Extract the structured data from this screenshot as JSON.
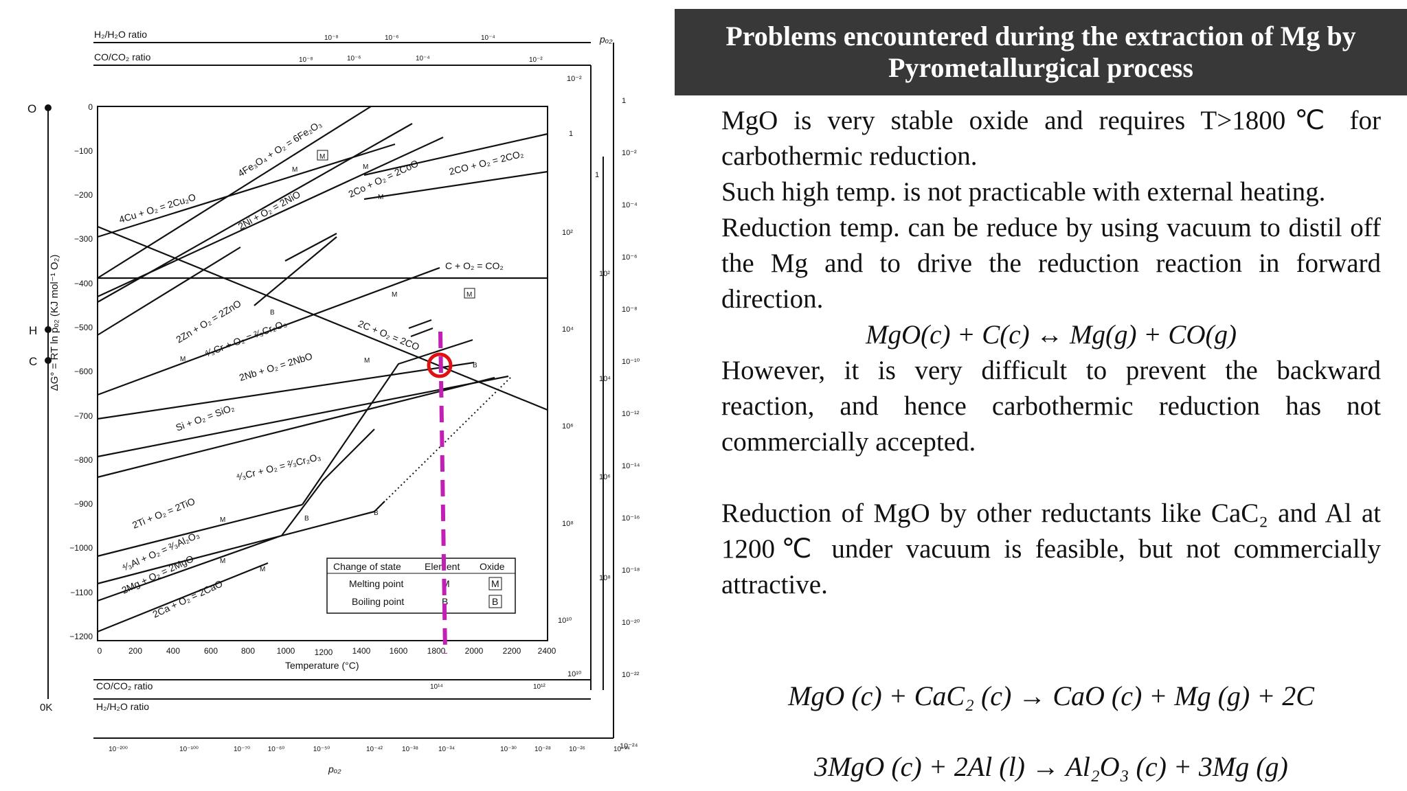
{
  "slide": {
    "title_line1": "Problems encountered during the extraction of Mg by",
    "title_line2": "Pyrometallurgical process",
    "paragraphs": [
      "MgO is very stable oxide and requires T>1800℃ for carbothermic reduction.",
      "Such high temp. is not practicable with external heating.",
      "Reduction temp. can be reduce by using vacuum to distil off the Mg and to drive the reduction reaction in forward direction."
    ],
    "equation1": "MgO(c) + C(c) ↔ Mg(g) + CO(g)",
    "paragraph4": "However, it is very difficult to prevent the backward reaction, and hence carbothermic reduction has not commercially accepted.",
    "paragraph5": "Reduction of MgO by other reductants like CaC₂ and Al at 1200℃ under vacuum is feasible, but not commercially attractive.",
    "equation2": "MgO (c) + CaC₂ (c) → CaO (c) + Mg (g) + 2C",
    "equation3": "3MgO (c) + 2Al (l) → Al₂O₃ (c) + 3Mg (g)"
  },
  "diagram": {
    "top_scale_h2": "H₂/H₂O ratio",
    "top_scale_co": "CO/CO₂ ratio",
    "bottom_scale_co": "CO/CO₂ ratio",
    "bottom_scale_h2": "H₂/H₂O ratio",
    "top_h2_ticks": [
      "10⁻⁸",
      "10⁻⁶",
      "10⁻⁴"
    ],
    "top_co_ticks": [
      "10⁻⁸",
      "10⁻⁶",
      "10⁻⁴",
      "10⁻²"
    ],
    "po2_label": "pₒ₂",
    "po2_bottom_label": "pₒ₂",
    "left_points": [
      "O",
      "H",
      "C",
      "0K"
    ],
    "ylabel": "ΔG° = RT ln pₒ₂ (KJ mol⁻¹ O₂)",
    "xlabel": "Temperature (°C)",
    "y_ticks": [
      "0",
      "−100",
      "−200",
      "−300",
      "−400",
      "−500",
      "−600",
      "−700",
      "−800",
      "−900",
      "−1000",
      "−1100",
      "−1200"
    ],
    "x_ticks": [
      "0",
      "200",
      "400",
      "600",
      "800",
      "1000",
      "1200",
      "1400",
      "1600",
      "1800",
      "2000",
      "2200",
      "2400"
    ],
    "co_ratio_right_ticks": [
      "10⁻²",
      "1",
      "10²",
      "10⁴",
      "10⁶",
      "10⁸",
      "10¹⁰"
    ],
    "h2_ratio_right_ticks": [
      "1",
      "10²",
      "10⁴",
      "10⁶",
      "10⁸",
      "10¹⁰"
    ],
    "po2_right_ticks": [
      "1",
      "10⁻²",
      "10⁻⁴",
      "10⁻⁶",
      "10⁻⁸",
      "10⁻¹⁰",
      "10⁻¹²",
      "10⁻¹⁴",
      "10⁻¹⁶",
      "10⁻¹⁸",
      "10⁻²⁰",
      "10⁻²²",
      "10⁻²⁴"
    ],
    "bottom_co_ticks": [
      "10¹⁴",
      "10¹²"
    ],
    "bottom_po2_ticks": [
      "10⁻²⁰⁰",
      "10⁻¹⁰⁰",
      "10⁻⁷⁰",
      "10⁻⁶⁰",
      "10⁻⁵⁰",
      "10⁻⁴²",
      "10⁻³⁸",
      "10⁻³⁴",
      "10⁻³⁰",
      "10⁻²⁸",
      "10⁻²⁶",
      "10⁻²⁴"
    ],
    "reactions": {
      "fe": "4Fe₃O₄ + O₂ = 6Fe₂O₃",
      "cu": "4Cu + O₂ = 2Cu₂O",
      "ni": "2Ni + O₂ = 2NiO",
      "co": "2Co + O₂ = 2CoO",
      "co2co": "2CO + O₂ = 2CO₂",
      "h2": "2H₂ + O₂ = 2H₂O",
      "cco2": "C + O₂ = CO₂",
      "zn": "2Zn + O₂ = 2ZnO",
      "cr1": "⁴⁄₃Cr + O₂ = ²⁄₃Cr₂O₃",
      "c2co": "2C + O₂ = 2CO",
      "nb": "2Nb + O₂ = 2NbO",
      "si": "Si + O₂ = SiO₂",
      "cr2": "⁴⁄₃Cr + O₂ = ²⁄₃Cr₂O₃",
      "ti": "2Ti + O₂ = 2TiO",
      "al": "⁴⁄₃Al + O₂ = ²⁄₃Al₂O₃",
      "mg": "2Mg + O₂ = 2MgO",
      "ca": "2Ca + O₂ = 2CaO"
    },
    "markers": {
      "melting": "M",
      "boiling": "B"
    },
    "legend": {
      "header": [
        "Change of state",
        "Element",
        "Oxide"
      ],
      "rows": [
        {
          "label": "Melting point",
          "element": "M",
          "oxide": "M"
        },
        {
          "label": "Boiling point",
          "element": "B",
          "oxide": "B"
        }
      ]
    },
    "colors": {
      "highlight_line": "#c21fb4",
      "highlight_circle": "#e01010",
      "title_bg": "#383838"
    }
  }
}
